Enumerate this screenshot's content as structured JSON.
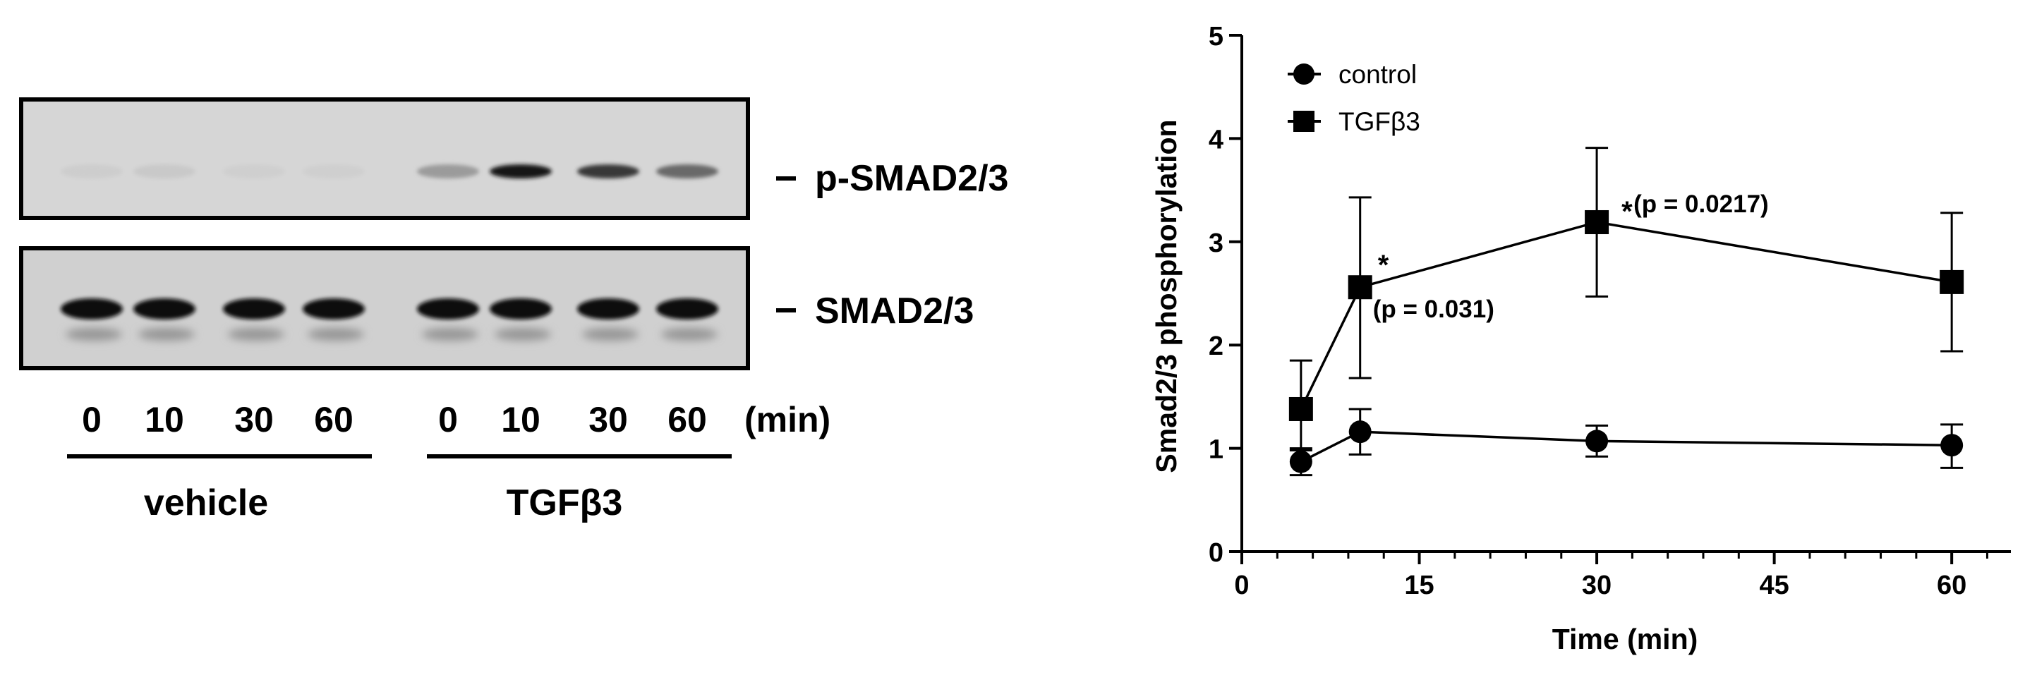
{
  "blot": {
    "rows": [
      {
        "label": "p-SMAD2/3",
        "band_intensity": [
          0.05,
          0.07,
          0.04,
          0.04,
          0.3,
          0.95,
          0.8,
          0.55
        ]
      },
      {
        "label": "SMAD2/3",
        "band_intensity": [
          1,
          1,
          1,
          1,
          1,
          1,
          1,
          1
        ]
      }
    ],
    "lane_times": [
      "0",
      "10",
      "30",
      "60",
      "0",
      "10",
      "30",
      "60"
    ],
    "unit_label": "(min)",
    "groups": [
      "vehicle",
      "TGFβ3"
    ]
  },
  "chart_data": {
    "type": "line",
    "xlabel": "Time (min)",
    "ylabel": "Smad2/3 phosphorylation",
    "xlim": [
      0,
      65
    ],
    "ylim": [
      0,
      5
    ],
    "xticks": [
      0,
      15,
      30,
      45,
      60
    ],
    "xminor": [
      3,
      6,
      9,
      12,
      18,
      21,
      24,
      27,
      33,
      36,
      39,
      42,
      48,
      51,
      54,
      57,
      63
    ],
    "yticks": [
      0,
      1,
      2,
      3,
      4,
      5
    ],
    "legend_position": "top-left",
    "series": [
      {
        "name": "control",
        "marker": "circle",
        "x": [
          5,
          10,
          30,
          60
        ],
        "y": [
          0.87,
          1.16,
          1.07,
          1.03
        ],
        "err_low": [
          0.13,
          0.22,
          0.15,
          0.22
        ],
        "err_high": [
          0.13,
          0.22,
          0.15,
          0.2
        ]
      },
      {
        "name": "TGFβ3",
        "marker": "square",
        "x": [
          5,
          10,
          30,
          60
        ],
        "y": [
          1.38,
          2.56,
          3.19,
          2.61
        ],
        "err_low": [
          0.4,
          0.88,
          0.72,
          0.67
        ],
        "err_high": [
          0.47,
          0.87,
          0.72,
          0.67
        ]
      }
    ],
    "annotations": [
      {
        "series": 1,
        "x": 10,
        "y": 2.56,
        "star": "*",
        "text": "(p = 0.031)",
        "placement": "below-right"
      },
      {
        "series": 1,
        "x": 30,
        "y": 3.19,
        "star": "*",
        "text": "(p = 0.0217)",
        "placement": "right"
      }
    ]
  }
}
